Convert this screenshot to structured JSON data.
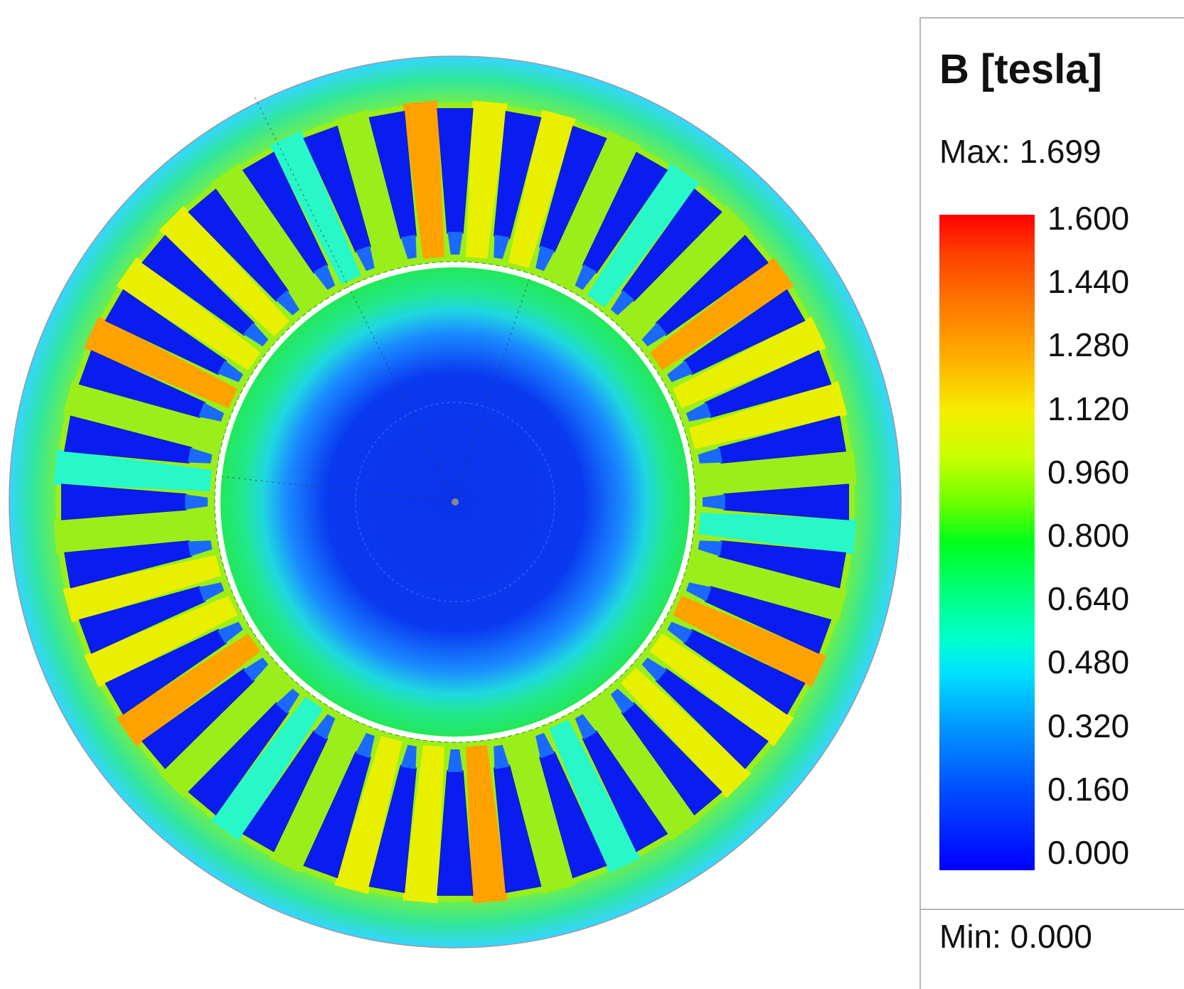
{
  "legend": {
    "title": "B [tesla]",
    "max_label": "Max: 1.699",
    "min_label": "Min: 0.000",
    "ticks": [
      "1.600",
      "1.440",
      "1.280",
      "1.120",
      "0.960",
      "0.800",
      "0.640",
      "0.480",
      "0.320",
      "0.160",
      "0.000"
    ],
    "colormap": [
      "#ff0000",
      "#ff7a00",
      "#f5ee00",
      "#6bff00",
      "#00ff1a",
      "#00ffd0",
      "#0098ff",
      "#0000ff"
    ]
  },
  "plot": {
    "stator_slots": 36,
    "colors": {
      "yoke": "#6fe83c",
      "yoke_low": "#1ac8ff",
      "slot": "#0a1df0",
      "tooth_hot": "#ffa200",
      "tooth_yellow": "#e8f000",
      "tooth_green": "#9aef1a",
      "tooth_cyan": "#28f7c8",
      "rotor_ring": "#22e85a",
      "rotor_mid": "#1fd8e0",
      "rotor_core": "#0a2ae6",
      "shaft": "#0222f5"
    }
  }
}
